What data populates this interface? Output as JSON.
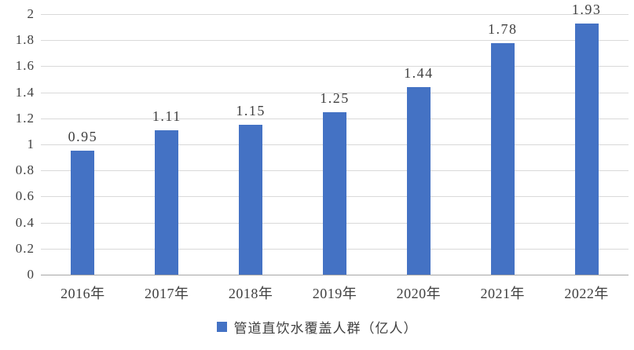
{
  "chart_data": {
    "type": "bar",
    "title": "",
    "categories": [
      "2016年",
      "2017年",
      "2018年",
      "2019年",
      "2020年",
      "2021年",
      "2022年"
    ],
    "values": [
      0.95,
      1.11,
      1.15,
      1.25,
      1.44,
      1.78,
      1.93
    ],
    "value_labels": [
      "0.95",
      "1.11",
      "1.15",
      "1.25",
      "1.44",
      "1.78",
      "1.93"
    ],
    "legend": "管道直饮水覆盖人群（亿人）",
    "legend_position": "bottom",
    "xlabel": "",
    "ylabel": "",
    "ylim": [
      0,
      2
    ],
    "ytick_step": 0.2,
    "ytick_labels": [
      "0",
      "0.2",
      "0.4",
      "0.6",
      "0.8",
      "1",
      "1.2",
      "1.4",
      "1.6",
      "1.8",
      "2"
    ],
    "grid": true,
    "bar_color": "#4472c4",
    "gridline_color": "#d9d9d9",
    "axis_line_color": "#a6a6a6",
    "text_color": "#3f3f3f"
  }
}
